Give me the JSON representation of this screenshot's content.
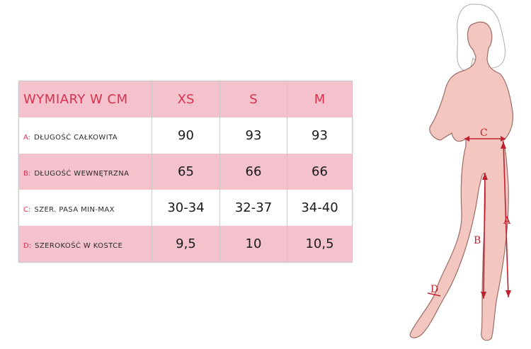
{
  "table": {
    "header": {
      "label": "WYMIARY W CM",
      "sizes": [
        "XS",
        "S",
        "M"
      ]
    },
    "rows": [
      {
        "letter": "A:",
        "label": "DŁUGOŚĆ CAŁKOWITA",
        "values": [
          "90",
          "93",
          "93"
        ]
      },
      {
        "letter": "B:",
        "label": "DŁUGOŚĆ WEWNĘTRZNA",
        "values": [
          "65",
          "66",
          "66"
        ]
      },
      {
        "letter": "C:",
        "label": "SZER. PASA MIN-MAX",
        "values": [
          "30-34",
          "32-37",
          "34-40"
        ]
      },
      {
        "letter": "D:",
        "label": "SZEROKOŚĆ W KOSTCE",
        "values": [
          "9,5",
          "10",
          "10,5"
        ]
      }
    ]
  },
  "figure": {
    "markers": [
      "C",
      "B",
      "A",
      "D"
    ]
  },
  "colors": {
    "accent": "#d8324f",
    "pink_row": "#f3c2cd",
    "skin": "#f3c7c0",
    "measure": "#c0202e"
  }
}
